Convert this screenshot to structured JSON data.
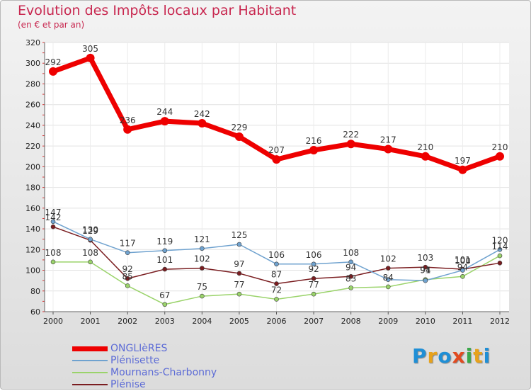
{
  "chart_data": {
    "type": "line",
    "title": "Evolution des Impôts locaux par Habitant",
    "subtitle": "(en € et par an)",
    "xlabel": "",
    "ylabel": "",
    "ylim": [
      60,
      320
    ],
    "yticks": [
      60,
      80,
      100,
      120,
      140,
      160,
      180,
      200,
      220,
      240,
      260,
      280,
      300,
      320
    ],
    "categories": [
      "2000",
      "2001",
      "2002",
      "2003",
      "2004",
      "2005",
      "2006",
      "2007",
      "2008",
      "2009",
      "2010",
      "2011",
      "2012"
    ],
    "grid": true,
    "legend_position": "bottom-left",
    "series": [
      {
        "name": "ONGLIèRES",
        "color": "#ee0000",
        "values": [
          292,
          305,
          236,
          244,
          242,
          229,
          207,
          216,
          222,
          217,
          210,
          197,
          210
        ],
        "labels": [
          "292",
          "305",
          "236",
          "244",
          "242",
          "229",
          "207",
          "216",
          "222",
          "217",
          "210",
          "197",
          "210"
        ]
      },
      {
        "name": "Plénisette",
        "color": "#6fa2cf",
        "values": [
          147,
          130,
          117,
          119,
          121,
          125,
          106,
          106,
          108,
          91,
          90,
          100,
          120
        ],
        "labels": [
          "147",
          "130",
          "117",
          "119",
          "121",
          "125",
          "106",
          "106",
          "108",
          "",
          "",
          "",
          "120"
        ]
      },
      {
        "name": "Mournans-Charbonny",
        "color": "#9ad36a",
        "values": [
          108,
          108,
          85,
          67,
          75,
          77,
          72,
          77,
          83,
          84,
          91,
          94,
          114
        ],
        "labels": [
          "108",
          "108",
          "85",
          "67",
          "75",
          "77",
          "72",
          "77",
          "83",
          "84",
          "91",
          "94",
          "114"
        ]
      },
      {
        "name": "Plénise",
        "color": "#7a1d20",
        "values": [
          142,
          129,
          92,
          101,
          102,
          97,
          87,
          92,
          94,
          102,
          103,
          101,
          107
        ],
        "labels": [
          "142",
          "129",
          "92",
          "101",
          "102",
          "97",
          "87",
          "92",
          "94",
          "102",
          "103",
          "101",
          ""
        ]
      }
    ],
    "value_labels_extra": [
      "94",
      "100"
    ]
  },
  "logo": {
    "text": "Proxiti",
    "letters": [
      "P",
      "r",
      "o",
      "x",
      "i",
      "t",
      "i"
    ],
    "colors": [
      "#1f8fd6",
      "#e7a21c",
      "#1f8fd6",
      "#e24a1f",
      "#3aa84a",
      "#e7a21c",
      "#1f8fd6"
    ]
  }
}
